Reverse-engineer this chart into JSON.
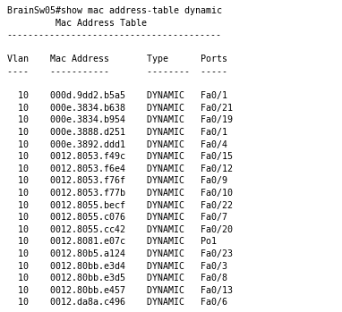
{
  "title_line1": "BrainSw05#show mac address-table dynamic",
  "title_line2": "         Mac Address Table",
  "separator": "----------------------------------------",
  "header": "Vlan    Mac Address       Type      Ports",
  "underline": "----    -----------       --------  -----",
  "rows": [
    "  10    000d.9dd2.b5a5    DYNAMIC   Fa0/1",
    "  10    000e.3834.b638    DYNAMIC   Fa0/21",
    "  10    000e.3834.b954    DYNAMIC   Fa0/19",
    "  10    000e.3888.d251    DYNAMIC   Fa0/1",
    "  10    000e.3892.ddd1    DYNAMIC   Fa0/4",
    "  10    0012.8053.f49c    DYNAMIC   Fa0/15",
    "  10    0012.8053.f6e4    DYNAMIC   Fa0/12",
    "  10    0012.8053.f76f    DYNAMIC   Fa0/9",
    "  10    0012.8053.f77b    DYNAMIC   Fa0/10",
    "  10    0012.8055.becf    DYNAMIC   Fa0/22",
    "  10    0012.8055.c076    DYNAMIC   Fa0/7",
    "  10    0012.8055.cc42    DYNAMIC   Fa0/20",
    "  10    0012.8081.e07c    DYNAMIC   Po1",
    "  10    0012.80b5.a124    DYNAMIC   Fa0/23",
    "  10    0012.80bb.e3d4    DYNAMIC   Fa0/3",
    "  10    0012.80bb.e3d5    DYNAMIC   Fa0/8",
    "  10    0012.80bb.e457    DYNAMIC   Fa0/13",
    "  10    0012.da8a.c496    DYNAMIC   Fa0/6"
  ],
  "bg_color": "#ffffff",
  "text_color": "#000000",
  "font_size": 7.2,
  "font_family": "monospace",
  "figsize": [
    3.82,
    3.49
  ],
  "dpi": 100
}
